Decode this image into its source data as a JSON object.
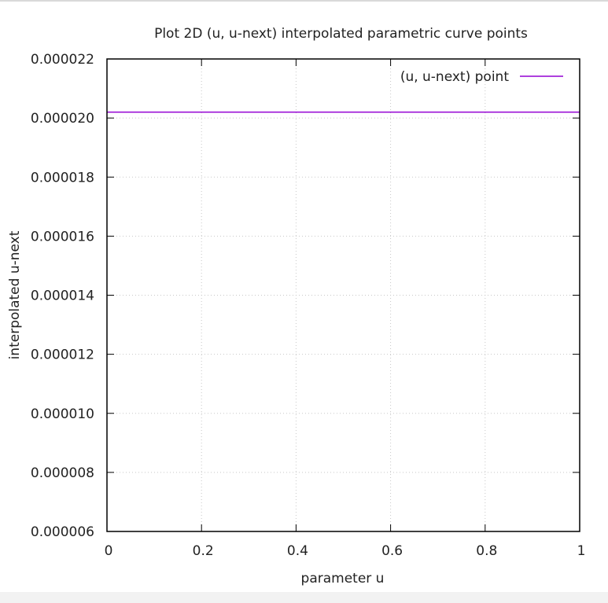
{
  "chart_data": {
    "type": "line",
    "title": "Plot 2D (u, u-next) interpolated parametric curve points",
    "xlabel": "parameter u",
    "ylabel": "interpolated u-next",
    "xlim": [
      0,
      1
    ],
    "ylim": [
      6e-06,
      2.2e-05
    ],
    "xticks": [
      0,
      0.2,
      0.4,
      0.6,
      0.8,
      1
    ],
    "xtick_labels": [
      "0",
      "0.2",
      "0.4",
      "0.6",
      "0.8",
      "1"
    ],
    "yticks": [
      6e-06,
      8e-06,
      1e-05,
      1.2e-05,
      1.4e-05,
      1.6e-05,
      1.8e-05,
      2e-05,
      2.2e-05
    ],
    "ytick_labels": [
      "0.000006",
      "0.000008",
      "0.000010",
      "0.000012",
      "0.000014",
      "0.000016",
      "0.000018",
      "0.000020",
      "0.000022"
    ],
    "grid": true,
    "legend_position": "top-right",
    "series": [
      {
        "name": "(u, u-next) point",
        "color": "#9400d3",
        "x": [
          0,
          1
        ],
        "y": [
          2.02e-05,
          2.02e-05
        ]
      }
    ]
  }
}
